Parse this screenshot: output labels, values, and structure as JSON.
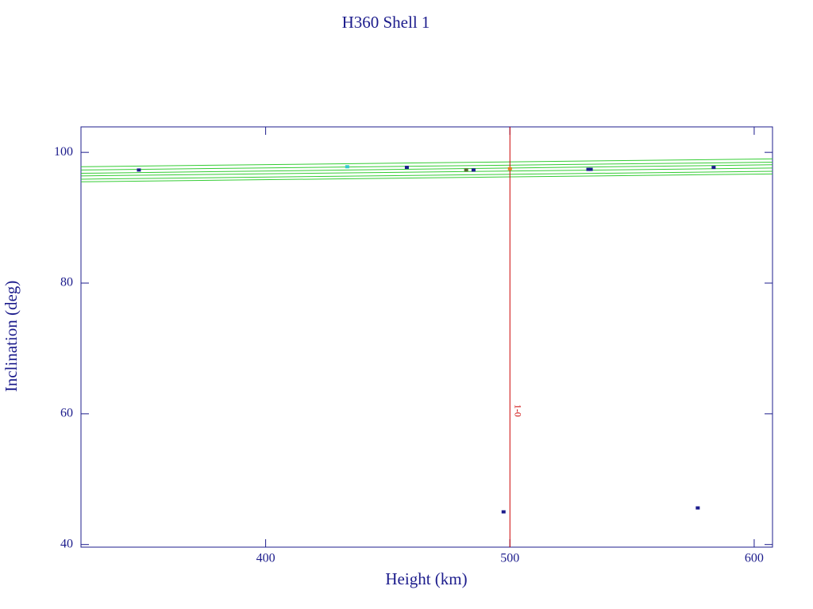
{
  "chart_data": {
    "type": "scatter",
    "title": "H360 Shell 1",
    "x_label": "Height (km)",
    "y_label": "Inclination (deg)",
    "xlim": [
      324.4,
      607.5
    ],
    "ylim": [
      39.6,
      103.9
    ],
    "xticks": [
      400,
      500,
      600
    ],
    "yticks": [
      40,
      60,
      80,
      100
    ],
    "axis_color": "#1c1c8c",
    "lines": [
      {
        "color": "#33cc33",
        "x": [
          324.4,
          607.5
        ],
        "values": [
          97.8,
          99.0
        ]
      },
      {
        "color": "#33cc33",
        "x": [
          324.4,
          607.5
        ],
        "values": [
          97.3,
          98.5
        ]
      },
      {
        "color": "#33cc33",
        "x": [
          324.4,
          607.5
        ],
        "values": [
          96.8,
          98.1
        ]
      },
      {
        "color": "#33cc33",
        "x": [
          324.4,
          607.5
        ],
        "values": [
          96.4,
          97.6
        ]
      },
      {
        "color": "#33cc33",
        "x": [
          324.4,
          607.5
        ],
        "values": [
          95.9,
          97.1
        ]
      },
      {
        "color": "#33cc33",
        "x": [
          324.4,
          607.5
        ],
        "values": [
          95.5,
          96.7
        ]
      }
    ],
    "series": [
      {
        "color": "#1c1c8c",
        "x": [
          348.1,
          457.8,
          485.1,
          532.1,
          533.1,
          583.4,
          497.4,
          576.9
        ],
        "values": [
          97.3,
          97.7,
          97.3,
          97.4,
          97.4,
          97.7,
          45.0,
          45.6
        ]
      },
      {
        "color": "#33cccc",
        "x": [
          433.4
        ],
        "values": [
          97.8
        ]
      },
      {
        "color": "#556b2f",
        "x": [
          482.1
        ],
        "values": [
          97.3
        ]
      },
      {
        "color": "#e08020",
        "x": [
          500
        ],
        "values": [
          97.5
        ]
      }
    ],
    "vline": {
      "x": 500,
      "color": "#cc0000",
      "label": "1-0",
      "label_y": 60.5
    }
  }
}
